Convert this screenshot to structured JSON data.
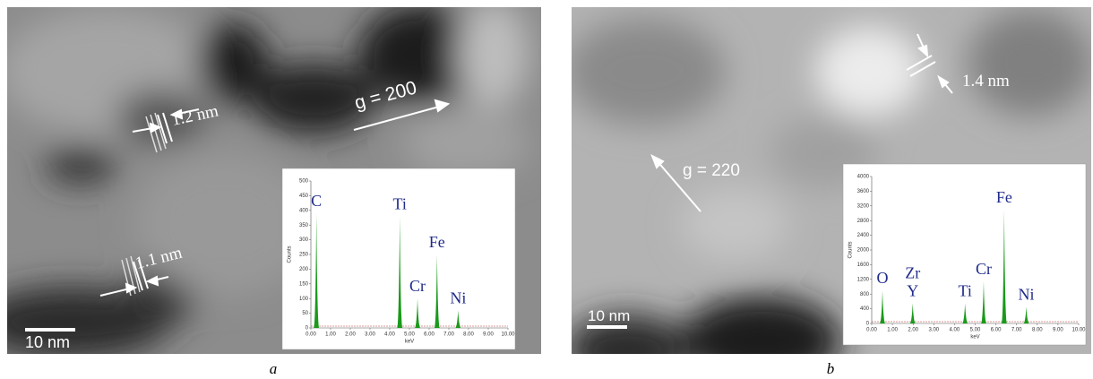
{
  "panels": [
    {
      "caption": "a",
      "scale_bar": "10 nm",
      "fringe_labels": [
        "1.2 nm",
        "1.1 nm"
      ],
      "g_vector": "g = 200",
      "spectrum": {
        "ylabel": "Counts",
        "xlabel": "keV",
        "xlim": [
          0,
          10
        ],
        "ylim": [
          0,
          500
        ],
        "yticks": [
          0,
          50,
          100,
          150,
          200,
          250,
          300,
          350,
          400,
          450,
          500
        ],
        "xticks": [
          {
            "value": 0,
            "label": "0.00"
          },
          {
            "value": 1,
            "label": "1.00"
          },
          {
            "value": 2,
            "label": "2.00"
          },
          {
            "value": 3,
            "label": "3.00"
          },
          {
            "value": 4,
            "label": "4.00"
          },
          {
            "value": 5,
            "label": "5.00"
          },
          {
            "value": 6,
            "label": "6.00"
          },
          {
            "value": 7,
            "label": "7.00"
          },
          {
            "value": 8,
            "label": "8.00"
          },
          {
            "value": 9,
            "label": "9.00"
          },
          {
            "value": 10,
            "label": "10.00"
          }
        ],
        "color": "#1a9a1a",
        "peaks": [
          {
            "labels": [
              "C"
            ],
            "x": 0.28,
            "y": 390
          },
          {
            "labels": [
              "Ti"
            ],
            "x": 4.51,
            "y": 380
          },
          {
            "labels": [
              "Cr"
            ],
            "x": 5.41,
            "y": 100
          },
          {
            "labels": [
              "Fe"
            ],
            "x": 6.4,
            "y": 250
          },
          {
            "labels": [
              "Ni"
            ],
            "x": 7.47,
            "y": 60
          }
        ]
      }
    },
    {
      "caption": "b",
      "scale_bar": "10 nm",
      "fringe_labels": [
        "1.4 nm"
      ],
      "g_vector": "g = 220",
      "spectrum": {
        "ylabel": "Counts",
        "xlabel": "keV",
        "xlim": [
          0,
          10
        ],
        "ylim": [
          0,
          4000
        ],
        "yticks": [
          0,
          400,
          800,
          1200,
          1600,
          2000,
          2400,
          2800,
          3200,
          3600,
          4000
        ],
        "xticks": [
          {
            "value": 0,
            "label": "0.00"
          },
          {
            "value": 1,
            "label": "1.00"
          },
          {
            "value": 2,
            "label": "2.00"
          },
          {
            "value": 3,
            "label": "3.00"
          },
          {
            "value": 4,
            "label": "4.00"
          },
          {
            "value": 5,
            "label": "5.00"
          },
          {
            "value": 6,
            "label": "6.00"
          },
          {
            "value": 7,
            "label": "7.00"
          },
          {
            "value": 8,
            "label": "8.00"
          },
          {
            "value": 9,
            "label": "9.00"
          },
          {
            "value": 10,
            "label": "10.00"
          }
        ],
        "color": "#1a9a1a",
        "peaks": [
          {
            "labels": [
              "O"
            ],
            "x": 0.52,
            "y": 900
          },
          {
            "labels": [
              "Zr",
              "Y"
            ],
            "x": 1.98,
            "y": 550
          },
          {
            "labels": [
              "Ti"
            ],
            "x": 4.51,
            "y": 550
          },
          {
            "labels": [
              "Cr"
            ],
            "x": 5.41,
            "y": 1150
          },
          {
            "labels": [
              "Fe"
            ],
            "x": 6.4,
            "y": 3100
          },
          {
            "labels": [
              "Ni"
            ],
            "x": 7.47,
            "y": 450
          }
        ]
      }
    }
  ]
}
